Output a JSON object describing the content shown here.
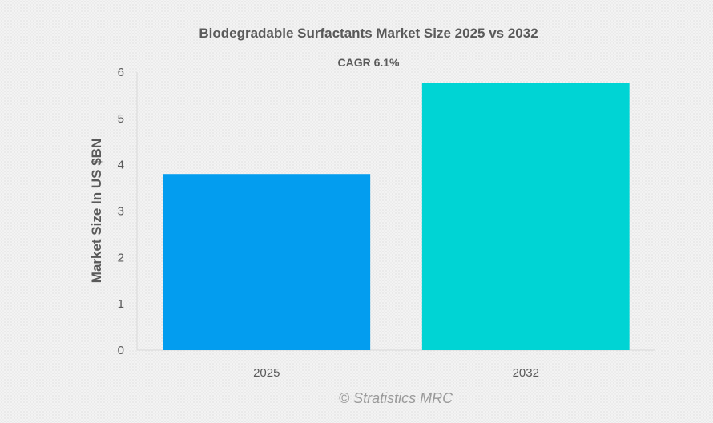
{
  "chart_data": {
    "type": "bar",
    "title": "Biodegradable Surfactants Market Size 2025 vs 2032",
    "subtitle": "CAGR 6.1%",
    "categories": [
      "2025",
      "2032"
    ],
    "values": [
      3.8,
      5.77
    ],
    "colors": [
      "#039def",
      "#00d4d4"
    ],
    "xlabel": "",
    "ylabel": "Market Size In US $BN",
    "ylim": [
      0,
      6
    ],
    "yticks": [
      "0",
      "1",
      "2",
      "3",
      "4",
      "5",
      "6"
    ],
    "grid": false,
    "legend": "none"
  },
  "watermark": "© Stratistics MRC"
}
